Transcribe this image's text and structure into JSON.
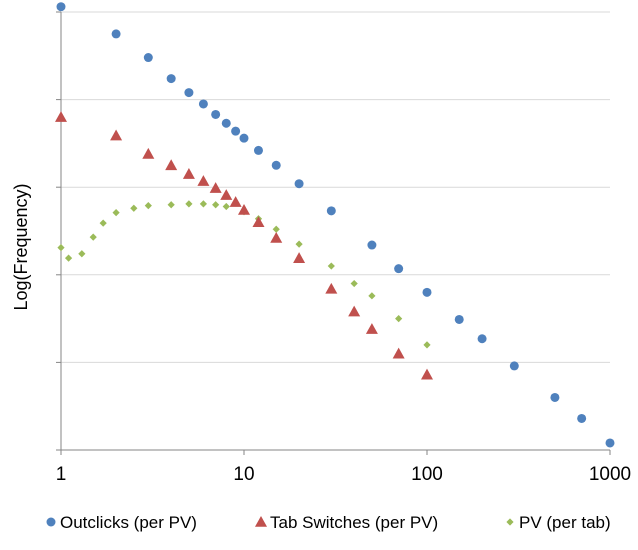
{
  "chart_data": {
    "type": "scatter",
    "title": "",
    "xlabel": "",
    "ylabel": "Log(Frequency)",
    "x_scale": "log",
    "x_ticks": [
      {
        "value": 1,
        "label": "1"
      },
      {
        "value": 10,
        "label": "10"
      },
      {
        "value": 100,
        "label": "100"
      },
      {
        "value": 1000,
        "label": "1000"
      }
    ],
    "xlim": [
      1,
      1000
    ],
    "y_tick_labels_shown": false,
    "ylim": [
      0,
      5
    ],
    "grid": "horizontal major gridlines",
    "legend_position": "bottom",
    "series": [
      {
        "name": "Outclicks (per PV)",
        "color": "#4F81BD",
        "marker": "circle",
        "points": [
          [
            1,
            5.06
          ],
          [
            2,
            4.75
          ],
          [
            3,
            4.48
          ],
          [
            4,
            4.24
          ],
          [
            5,
            4.08
          ],
          [
            6,
            3.95
          ],
          [
            7,
            3.83
          ],
          [
            8,
            3.73
          ],
          [
            9,
            3.64
          ],
          [
            10,
            3.56
          ],
          [
            12,
            3.42
          ],
          [
            15,
            3.25
          ],
          [
            20,
            3.04
          ],
          [
            30,
            2.73
          ],
          [
            50,
            2.34
          ],
          [
            70,
            2.07
          ],
          [
            100,
            1.8
          ],
          [
            150,
            1.49
          ],
          [
            200,
            1.27
          ],
          [
            300,
            0.96
          ],
          [
            500,
            0.6
          ],
          [
            700,
            0.36
          ],
          [
            1000,
            0.08
          ]
        ]
      },
      {
        "name": "Tab Switches (per PV)",
        "color": "#C0504D",
        "marker": "triangle",
        "points": [
          [
            1,
            3.8
          ],
          [
            2,
            3.59
          ],
          [
            3,
            3.38
          ],
          [
            4,
            3.25
          ],
          [
            5,
            3.15
          ],
          [
            6,
            3.07
          ],
          [
            7,
            2.99
          ],
          [
            8,
            2.91
          ],
          [
            9,
            2.83
          ],
          [
            10,
            2.74
          ],
          [
            12,
            2.6
          ],
          [
            15,
            2.42
          ],
          [
            20,
            2.19
          ],
          [
            30,
            1.84
          ],
          [
            40,
            1.58
          ],
          [
            50,
            1.38
          ],
          [
            70,
            1.1
          ],
          [
            100,
            0.86
          ]
        ]
      },
      {
        "name": "PV (per tab)",
        "color": "#9BBB59",
        "marker": "diamond",
        "points": [
          [
            1,
            2.31
          ],
          [
            1.1,
            2.19
          ],
          [
            1.3,
            2.24
          ],
          [
            1.5,
            2.43
          ],
          [
            1.7,
            2.59
          ],
          [
            2,
            2.71
          ],
          [
            2.5,
            2.76
          ],
          [
            3,
            2.79
          ],
          [
            4,
            2.8
          ],
          [
            5,
            2.81
          ],
          [
            6,
            2.81
          ],
          [
            7,
            2.8
          ],
          [
            8,
            2.78
          ],
          [
            10,
            2.72
          ],
          [
            12,
            2.64
          ],
          [
            15,
            2.52
          ],
          [
            20,
            2.35
          ],
          [
            30,
            2.1
          ],
          [
            40,
            1.9
          ],
          [
            50,
            1.76
          ],
          [
            70,
            1.5
          ],
          [
            100,
            1.2
          ]
        ]
      }
    ]
  }
}
